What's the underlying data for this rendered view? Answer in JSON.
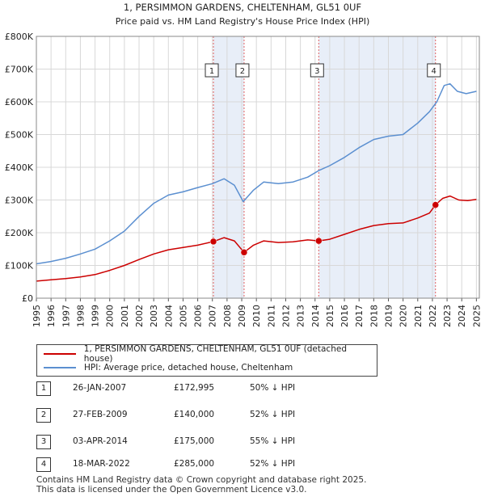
{
  "chart_data": {
    "type": "line",
    "title": "1, PERSIMMON GARDENS, CHELTENHAM, GL51 0UF",
    "subtitle": "Price paid vs. HM Land Registry's House Price Index (HPI)",
    "xlim": [
      1995,
      2025.2
    ],
    "ylim": [
      0,
      800000
    ],
    "y_ticks": [
      0,
      100000,
      200000,
      300000,
      400000,
      500000,
      600000,
      700000,
      800000
    ],
    "y_tick_labels": [
      "£0",
      "£100K",
      "£200K",
      "£300K",
      "£400K",
      "£500K",
      "£600K",
      "£700K",
      "£800K"
    ],
    "x_ticks": [
      "1995",
      "1996",
      "1997",
      "1998",
      "1999",
      "2000",
      "2001",
      "2002",
      "2003",
      "2004",
      "2005",
      "2006",
      "2007",
      "2008",
      "2009",
      "2010",
      "2011",
      "2012",
      "2013",
      "2014",
      "2015",
      "2016",
      "2017",
      "2018",
      "2019",
      "2020",
      "2021",
      "2022",
      "2023",
      "2024",
      "2025"
    ],
    "grid": true,
    "shaded_periods": [
      [
        2007.07,
        2009.16
      ],
      [
        2014.25,
        2022.21
      ]
    ],
    "series": [
      {
        "name": "1, PERSIMMON GARDENS, CHELTENHAM, GL51 0UF (detached house)",
        "color": "#cc0000",
        "points": [
          [
            1995.0,
            52000
          ],
          [
            1996.0,
            56000
          ],
          [
            1997.0,
            60000
          ],
          [
            1998.0,
            65000
          ],
          [
            1999.0,
            72000
          ],
          [
            2000.0,
            85000
          ],
          [
            2001.0,
            100000
          ],
          [
            2002.0,
            118000
          ],
          [
            2003.0,
            135000
          ],
          [
            2004.0,
            148000
          ],
          [
            2005.0,
            155000
          ],
          [
            2006.0,
            162000
          ],
          [
            2007.07,
            172995
          ],
          [
            2007.8,
            185000
          ],
          [
            2008.5,
            175000
          ],
          [
            2009.16,
            140000
          ],
          [
            2009.8,
            162000
          ],
          [
            2010.5,
            175000
          ],
          [
            2011.5,
            170000
          ],
          [
            2012.5,
            172000
          ],
          [
            2013.5,
            178000
          ],
          [
            2014.25,
            175000
          ],
          [
            2015.0,
            180000
          ],
          [
            2016.0,
            195000
          ],
          [
            2017.0,
            210000
          ],
          [
            2018.0,
            222000
          ],
          [
            2019.0,
            228000
          ],
          [
            2020.0,
            230000
          ],
          [
            2021.0,
            245000
          ],
          [
            2021.8,
            260000
          ],
          [
            2022.21,
            285000
          ],
          [
            2022.7,
            305000
          ],
          [
            2023.2,
            312000
          ],
          [
            2023.8,
            300000
          ],
          [
            2024.4,
            298000
          ],
          [
            2025.0,
            302000
          ]
        ]
      },
      {
        "name": "HPI: Average price, detached house, Cheltenham",
        "color": "#5b8fd0",
        "points": [
          [
            1995.0,
            105000
          ],
          [
            1996.0,
            112000
          ],
          [
            1997.0,
            122000
          ],
          [
            1998.0,
            135000
          ],
          [
            1999.0,
            150000
          ],
          [
            2000.0,
            175000
          ],
          [
            2001.0,
            205000
          ],
          [
            2002.0,
            250000
          ],
          [
            2003.0,
            290000
          ],
          [
            2004.0,
            315000
          ],
          [
            2005.0,
            325000
          ],
          [
            2006.0,
            338000
          ],
          [
            2007.0,
            350000
          ],
          [
            2007.8,
            365000
          ],
          [
            2008.5,
            345000
          ],
          [
            2009.1,
            295000
          ],
          [
            2009.8,
            330000
          ],
          [
            2010.5,
            355000
          ],
          [
            2011.5,
            350000
          ],
          [
            2012.5,
            355000
          ],
          [
            2013.5,
            370000
          ],
          [
            2014.25,
            390000
          ],
          [
            2015.0,
            405000
          ],
          [
            2016.0,
            430000
          ],
          [
            2017.0,
            460000
          ],
          [
            2018.0,
            485000
          ],
          [
            2019.0,
            495000
          ],
          [
            2020.0,
            500000
          ],
          [
            2021.0,
            535000
          ],
          [
            2021.8,
            570000
          ],
          [
            2022.3,
            600000
          ],
          [
            2022.8,
            650000
          ],
          [
            2023.2,
            655000
          ],
          [
            2023.7,
            632000
          ],
          [
            2024.3,
            625000
          ],
          [
            2025.0,
            632000
          ]
        ]
      }
    ],
    "sale_markers": [
      {
        "label": "1",
        "x": 2007.07,
        "y": 172995
      },
      {
        "label": "2",
        "x": 2009.16,
        "y": 140000
      },
      {
        "label": "3",
        "x": 2014.25,
        "y": 175000
      },
      {
        "label": "4",
        "x": 2022.21,
        "y": 285000
      }
    ]
  },
  "sales": [
    {
      "num": "1",
      "date": "26-JAN-2007",
      "price": "£172,995",
      "hpi": "50% ↓ HPI"
    },
    {
      "num": "2",
      "date": "27-FEB-2009",
      "price": "£140,000",
      "hpi": "52% ↓ HPI"
    },
    {
      "num": "3",
      "date": "03-APR-2014",
      "price": "£175,000",
      "hpi": "55% ↓ HPI"
    },
    {
      "num": "4",
      "date": "18-MAR-2022",
      "price": "£285,000",
      "hpi": "52% ↓ HPI"
    }
  ],
  "footer": {
    "line1": "Contains HM Land Registry data © Crown copyright and database right 2025.",
    "line2": "This data is licensed under the Open Government Licence v3.0."
  }
}
